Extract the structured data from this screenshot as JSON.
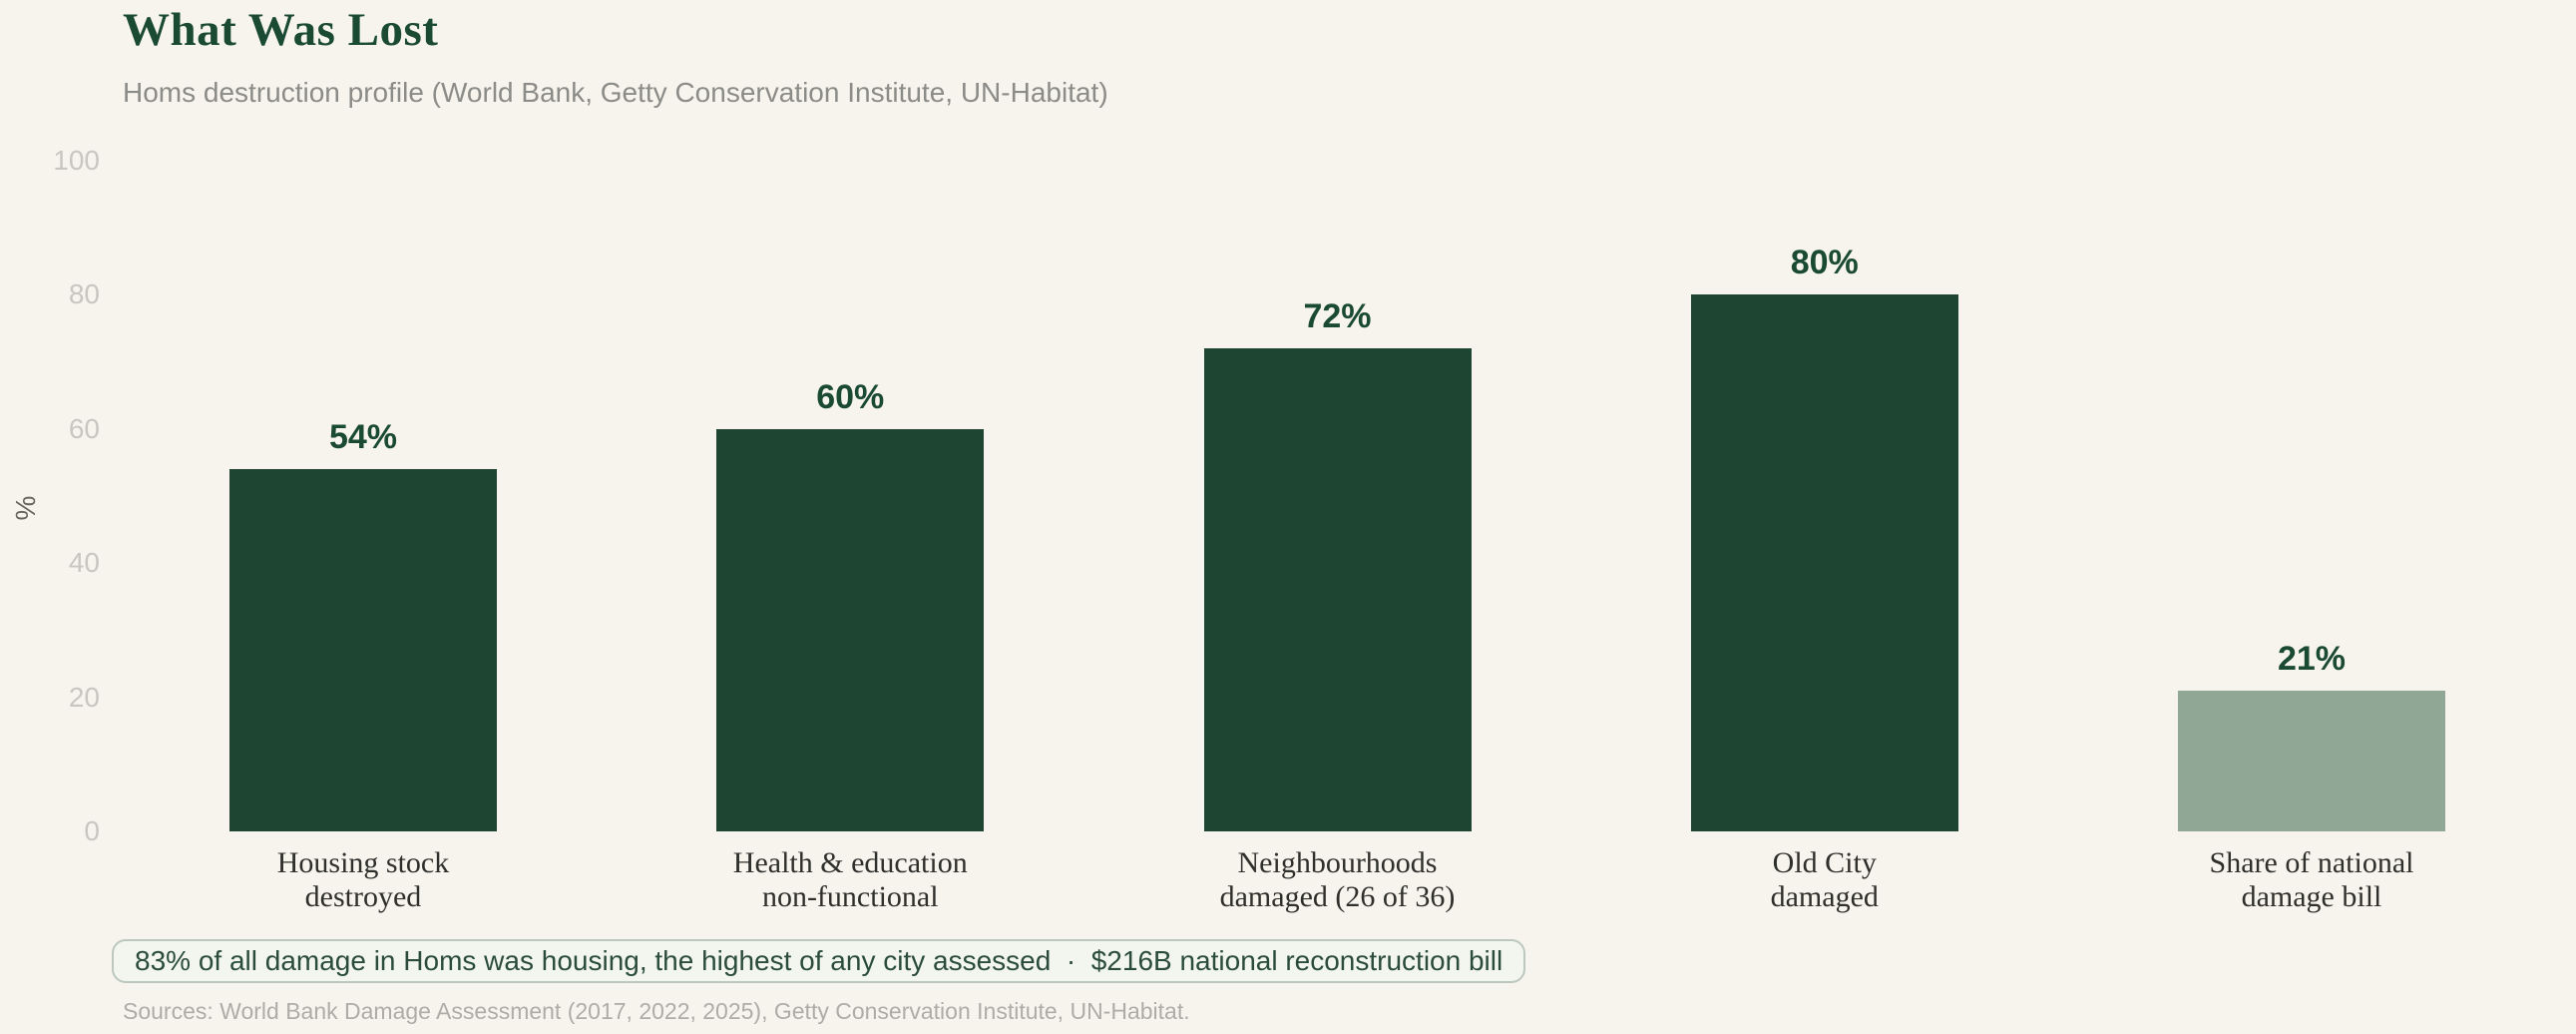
{
  "page": {
    "title": "What Was Lost",
    "subtitle": "Homs destruction profile (World Bank, Getty Conservation Institute, UN-Habitat)"
  },
  "chart_data": {
    "type": "bar",
    "title": "What Was Lost",
    "subtitle": "Homs destruction profile (World Bank, Getty Conservation Institute, UN-Habitat)",
    "categories": [
      "Housing stock destroyed",
      "Health & education non-functional",
      "Neighbourhoods damaged (26 of 36)",
      "Old City damaged",
      "Share of national damage bill"
    ],
    "category_lines": [
      [
        "Housing stock",
        "destroyed"
      ],
      [
        "Health & education",
        "non-functional"
      ],
      [
        "Neighbourhoods",
        "damaged (26 of 36)"
      ],
      [
        "Old City",
        "damaged"
      ],
      [
        "Share of national",
        "damage bill"
      ]
    ],
    "values": [
      54,
      60,
      72,
      80,
      21
    ],
    "value_labels": [
      "54%",
      "60%",
      "72%",
      "80%",
      "21%"
    ],
    "bar_colors": [
      "#1e4531",
      "#1e4531",
      "#1e4531",
      "#1e4531",
      "#90a796"
    ],
    "xlabel": "",
    "ylabel": "%",
    "yticks": [
      0,
      20,
      40,
      60,
      80,
      100
    ],
    "ylim": [
      0,
      100
    ],
    "grid": false,
    "legend": null
  },
  "annotation": {
    "text": "83% of all damage in Homs was housing, the highest of any city assessed  ·  $216B national reconstruction bill"
  },
  "footer": {
    "sources": "Sources: World Bank Damage Assessment (2017, 2022, 2025), Getty Conservation Institute, UN-Habitat."
  },
  "colors": {
    "background": "#f7f4ed",
    "bar_primary": "#1e4531",
    "bar_muted": "#90a796",
    "title": "#1b4a33",
    "value_label": "#1b4a33",
    "tick_label": "#c7c6c0",
    "axis_label": "#67675f",
    "category_label": "#2f2f2b",
    "subtitle": "#8b8b87",
    "annotation_text": "#2b4c3c",
    "annotation_border": "#bcc8bd",
    "annotation_bg": "#f2f6ef",
    "sources": "#adaca6"
  }
}
